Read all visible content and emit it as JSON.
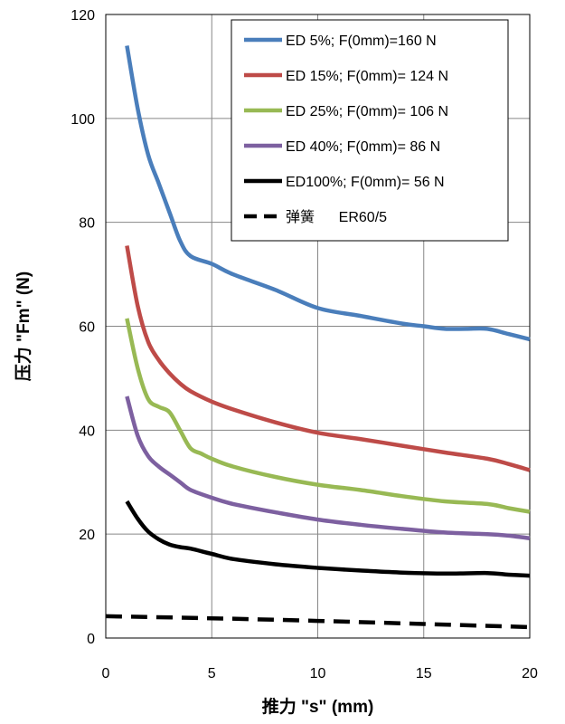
{
  "chart_data": {
    "type": "line",
    "xlabel": "推力  \"s\" (mm)",
    "ylabel": "压力 \"Fm\" (N)",
    "xlim": [
      0,
      20
    ],
    "ylim": [
      0,
      120
    ],
    "xticks": [
      0,
      5,
      10,
      15,
      20
    ],
    "yticks": [
      0,
      20,
      40,
      60,
      80,
      100,
      120
    ],
    "grid": true,
    "legend_position": "top-right",
    "series": [
      {
        "name": "ED 5%; F(0mm)=160 N",
        "color": "#4a7ebb",
        "dash": "solid",
        "x": [
          1,
          1.5,
          2,
          2.5,
          3,
          3.5,
          4,
          5,
          6,
          8,
          10,
          12,
          14,
          15,
          16,
          17,
          18,
          19,
          20
        ],
        "y": [
          114,
          102,
          93,
          87.5,
          82,
          76.5,
          73.5,
          72,
          70,
          67,
          63.5,
          62,
          60.5,
          60,
          59.5,
          59.5,
          59.5,
          58.5,
          57.5
        ]
      },
      {
        "name": "ED 15%; F(0mm)= 124 N",
        "color": "#be4b48",
        "dash": "solid",
        "x": [
          1,
          1.5,
          2,
          2.5,
          3,
          3.5,
          4,
          5,
          6,
          8,
          10,
          12,
          14,
          16,
          18,
          19,
          20
        ],
        "y": [
          75.5,
          64,
          57,
          53.5,
          51,
          49,
          47.5,
          45.5,
          44,
          41.5,
          39.5,
          38.3,
          37,
          35.7,
          34.5,
          33.5,
          32.3
        ]
      },
      {
        "name": "ED 25%; F(0mm)= 106 N",
        "color": "#98b954",
        "dash": "solid",
        "x": [
          1,
          1.5,
          2,
          2.5,
          3,
          3.5,
          4,
          4.5,
          5,
          6,
          8,
          10,
          12,
          14,
          16,
          18,
          19,
          20
        ],
        "y": [
          61.5,
          52,
          46,
          44.5,
          43.5,
          40,
          36.5,
          35.5,
          34.5,
          33,
          31,
          29.5,
          28.5,
          27.3,
          26.3,
          25.8,
          25,
          24.3
        ]
      },
      {
        "name": "ED 40%; F(0mm)= 86 N",
        "color": "#7d60a0",
        "dash": "solid",
        "x": [
          1,
          1.5,
          2,
          2.5,
          3,
          3.5,
          4,
          5,
          6,
          8,
          10,
          12,
          14,
          16,
          18,
          19,
          20
        ],
        "y": [
          46.5,
          39,
          35,
          33,
          31.5,
          30,
          28.5,
          27,
          25.8,
          24.2,
          22.8,
          21.8,
          21,
          20.3,
          20,
          19.7,
          19.2
        ]
      },
      {
        "name": "ED100%; F(0mm)= 56 N",
        "color": "#000000",
        "dash": "solid",
        "x": [
          1,
          1.5,
          2,
          2.5,
          3,
          3.5,
          4,
          5,
          6,
          8,
          10,
          12,
          14,
          16,
          18,
          19,
          20
        ],
        "y": [
          26.3,
          23,
          20.5,
          19,
          18,
          17.5,
          17.2,
          16.2,
          15.2,
          14.2,
          13.5,
          13,
          12.6,
          12.4,
          12.5,
          12.2,
          12
        ]
      },
      {
        "name": "弹簧      ER60/5",
        "color": "#000000",
        "dash": "dashed",
        "x": [
          0,
          5,
          10,
          15,
          20
        ],
        "y": [
          4.2,
          3.8,
          3.3,
          2.7,
          2.1
        ]
      }
    ]
  }
}
